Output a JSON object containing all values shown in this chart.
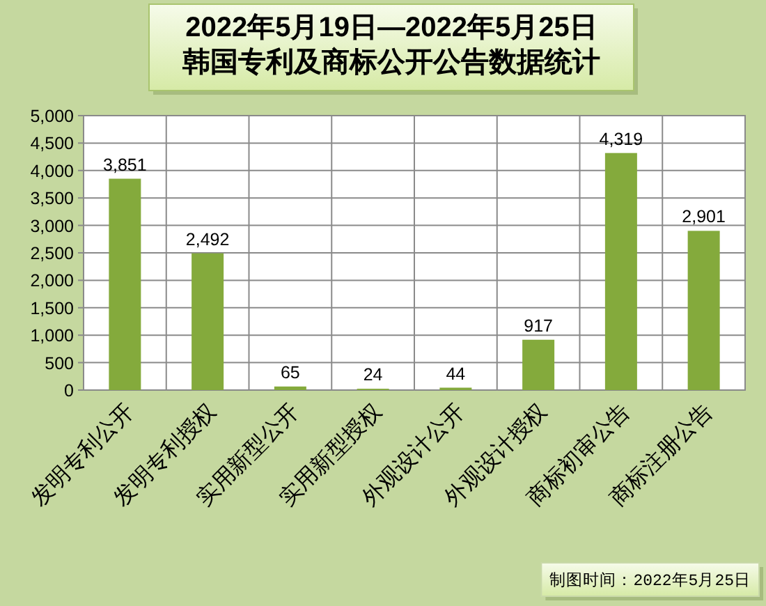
{
  "chart_data": {
    "type": "bar",
    "title": "2022年5月19日—2022年5月25日",
    "subtitle": "韩国专利及商标公开公告数据统计",
    "categories": [
      "发明专利公开",
      "发明专利授权",
      "实用新型公开",
      "实用新型授权",
      "外观设计公开",
      "外观设计授权",
      "商标初审公告",
      "商标注册公告"
    ],
    "values": [
      3851,
      2492,
      65,
      24,
      44,
      917,
      4319,
      2901
    ],
    "value_labels": [
      "3,851",
      "2,492",
      "65",
      "24",
      "44",
      "917",
      "4,319",
      "2,901"
    ],
    "color": "#84aa3c",
    "ylim": [
      0,
      5000
    ],
    "yticks": [
      0,
      500,
      {
        "value": 1000,
        "label": "1,000"
      },
      {
        "value": 1500,
        "label": "1,500"
      },
      {
        "value": 2000,
        "label": "2,000"
      },
      {
        "value": 2500,
        "label": "2,500"
      },
      {
        "value": 3000,
        "label": "3,000"
      },
      {
        "value": 3500,
        "label": "3,500"
      },
      {
        "value": 4000,
        "label": "4,000"
      },
      {
        "value": 4500,
        "label": "4,500"
      },
      {
        "value": 5000,
        "label": "5,000"
      }
    ],
    "grid": true,
    "annotations": [
      "制图时间：2022年5月25日"
    ]
  }
}
